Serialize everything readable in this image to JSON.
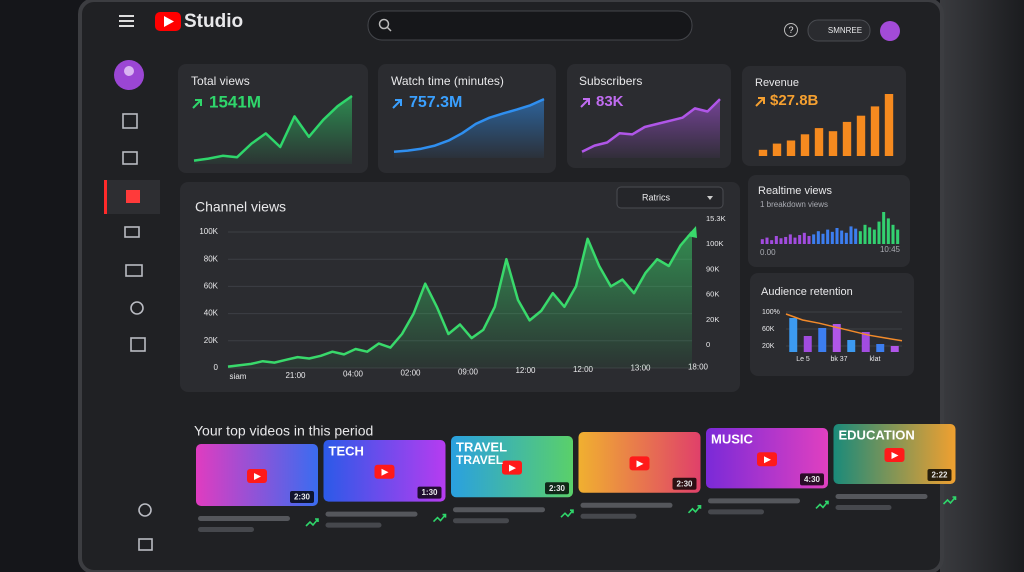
{
  "header": {
    "logo": "Studio",
    "help": "?",
    "account_button": "SMNREE"
  },
  "cards": [
    {
      "title": "Total views",
      "value": "1541M",
      "type": "area",
      "color": "#2fd66b",
      "ylim": [
        0,
        100
      ],
      "values": [
        5,
        8,
        12,
        10,
        30,
        45,
        25,
        70,
        40,
        65,
        85,
        100
      ]
    },
    {
      "title": "Watch time (minutes)",
      "value": "757.3M",
      "type": "area",
      "color": "#2f8ff0",
      "ylim": [
        0,
        100
      ],
      "values": [
        10,
        12,
        15,
        20,
        28,
        40,
        55,
        65,
        72,
        78,
        85,
        95
      ]
    },
    {
      "title": "Subscribers",
      "value": "83K",
      "type": "area",
      "color": "#b056e8",
      "ylim": [
        0,
        100
      ],
      "values": [
        10,
        20,
        25,
        40,
        38,
        50,
        55,
        60,
        65,
        80,
        75,
        95
      ]
    },
    {
      "title": "Revenue",
      "value": "$27.8B",
      "type": "bar",
      "color": "#f58a1f",
      "ylim": [
        0,
        100
      ],
      "values": [
        10,
        20,
        25,
        35,
        45,
        40,
        55,
        65,
        80,
        100
      ]
    }
  ],
  "channel_views": {
    "title": "Channel views",
    "dropdown": "Ratrics",
    "color": "#39d96b",
    "ylim": [
      0,
      100000
    ],
    "yticks": [
      {
        "value": 0,
        "label": "0"
      },
      {
        "value": 20000,
        "label": "20K"
      },
      {
        "value": 40000,
        "label": "40K"
      },
      {
        "value": 60000,
        "label": "60K"
      },
      {
        "value": 80000,
        "label": "80K"
      },
      {
        "value": 100000,
        "label": "100K"
      }
    ],
    "right_labels": [
      "15.3K",
      "100K",
      "90K",
      "60K",
      "20K",
      "0"
    ],
    "xticks": [
      "siam",
      "21:00",
      "04:00",
      "02:00",
      "09:00",
      "12:00",
      "12:00",
      "13:00",
      "18:00"
    ],
    "values": [
      1000,
      2000,
      3000,
      5000,
      4000,
      6000,
      8000,
      7000,
      9000,
      12000,
      10000,
      14000,
      12000,
      18000,
      15000,
      25000,
      40000,
      62000,
      45000,
      25000,
      32000,
      22000,
      28000,
      45000,
      80000,
      50000,
      35000,
      42000,
      55000,
      45000,
      60000,
      95000,
      75000,
      60000,
      65000,
      55000,
      70000,
      80000,
      75000,
      90000,
      100000
    ]
  },
  "realtime": {
    "title": "Realtime views",
    "subtitle": "1 breakdown views",
    "x_start": "0.00",
    "x_end": "10:45",
    "ylim": [
      0,
      100
    ],
    "values": [
      15,
      20,
      12,
      25,
      18,
      22,
      30,
      20,
      28,
      35,
      25,
      30,
      40,
      32,
      45,
      38,
      50,
      42,
      35,
      55,
      48,
      40,
      60,
      52,
      45,
      70,
      100,
      80,
      60,
      45
    ]
  },
  "retention": {
    "title": "Audience retention",
    "ylim": [
      0,
      100
    ],
    "ylabels": [
      "100%",
      "60K",
      "20K"
    ],
    "categories": [
      "Le 5",
      "bk 37",
      "klat"
    ],
    "bars": [
      85,
      40,
      60,
      70,
      30,
      50,
      20,
      15
    ],
    "line": [
      95,
      80,
      72,
      62,
      52,
      42,
      35,
      28
    ]
  },
  "top_videos": {
    "title": "Your top videos in this period",
    "videos": [
      {
        "duration": "2:30"
      },
      {
        "label": "TECH",
        "duration": "1:30"
      },
      {
        "label": "TRAVEL",
        "label2": "TRAVEL",
        "duration": "2:30"
      },
      {
        "duration": "2:30"
      },
      {
        "label": "MUSIC",
        "duration": "4:30"
      },
      {
        "label": "EDUCATION",
        "duration": "2:22"
      }
    ]
  }
}
